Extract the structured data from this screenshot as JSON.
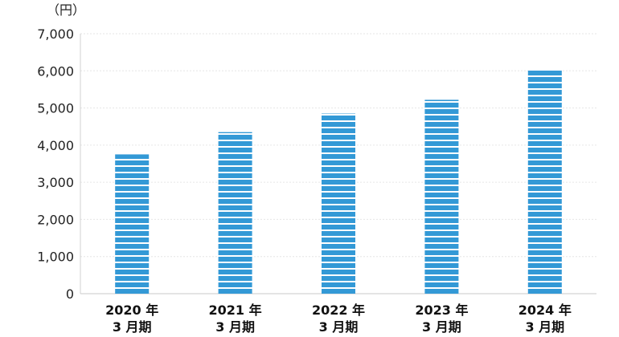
{
  "chart_data": {
    "type": "bar",
    "unit_label": "（円）",
    "categories": [
      [
        "2020 年",
        "3 月期"
      ],
      [
        "2021 年",
        "3 月期"
      ],
      [
        "2022 年",
        "3 月期"
      ],
      [
        "2023 年",
        "3 月期"
      ],
      [
        "2024 年",
        "3 月期"
      ]
    ],
    "values": [
      3750,
      4350,
      4850,
      5220,
      6020
    ],
    "ylim": [
      0,
      7000
    ],
    "yticks": [
      0,
      1000,
      2000,
      3000,
      4000,
      5000,
      6000,
      7000
    ],
    "ytick_labels": [
      "0",
      "1,000",
      "2,000",
      "3,000",
      "4,000",
      "5,000",
      "6,000",
      "7,000"
    ],
    "grid": true,
    "bar_color": "#3399d6",
    "stripe_color": "#ffffff"
  }
}
